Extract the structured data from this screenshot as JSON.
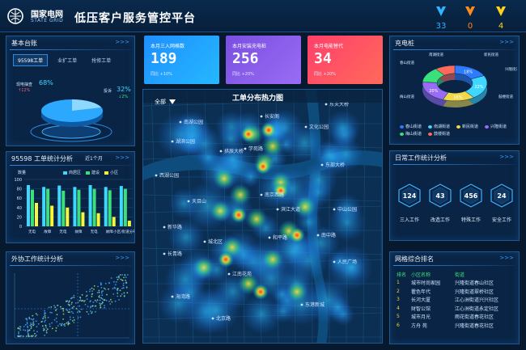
{
  "header": {
    "brand_cn": "国家电网",
    "brand_en": "STATE GRID",
    "title": "低压客户服务管控平台",
    "medals": [
      {
        "count": "33",
        "color": "#2fb4ff"
      },
      {
        "count": "0",
        "color": "#ff8a1c"
      },
      {
        "count": "4",
        "color": "#ffd21c"
      }
    ]
  },
  "ledger": {
    "title": "基本台账",
    "tabs": [
      "95598工单",
      "业扩工单",
      "抢修工单"
    ],
    "left_label": "现电抽查",
    "left_pct": "68%",
    "left_sub": "↑12%",
    "right_label": "投诉",
    "right_pct": "32%",
    "right_sub": "↓2%"
  },
  "kpis": [
    {
      "label": "本月三入网格数",
      "value": "189",
      "sub": "同比 +10%",
      "c1": "#1e8fff",
      "c2": "#25b8ff"
    },
    {
      "label": "本月安装充电桩",
      "value": "256",
      "sub": "同比 +20%",
      "c1": "#7a4fe0",
      "c2": "#9a6cf5"
    },
    {
      "label": "本月电能替代",
      "value": "34",
      "sub": "同比 +20%",
      "c1": "#ff3f6b",
      "c2": "#ff6a5b"
    }
  ],
  "order_stats": {
    "title": "95598 工单统计分析",
    "period": "近1个月",
    "ylabel": "数量",
    "chart_data": {
      "type": "bar",
      "ylim": [
        0,
        100
      ],
      "yticks": [
        "100",
        "80",
        "60",
        "40",
        "20",
        "0"
      ],
      "categories": [
        "无电",
        "故障",
        "无电",
        "故障",
        "无电",
        "故障",
        "小区/街道分布"
      ],
      "series": [
        {
          "name": "商居区",
          "color": "#3fd7ff",
          "values": [
            88,
            84,
            87,
            84,
            88,
            84,
            86
          ]
        },
        {
          "name": "建设",
          "color": "#3be07a",
          "values": [
            78,
            80,
            76,
            78,
            80,
            77,
            80
          ]
        },
        {
          "name": "小区",
          "color": "#f6f63b",
          "values": [
            50,
            44,
            40,
            30,
            28,
            20,
            12
          ]
        }
      ]
    }
  },
  "outsource": {
    "title": "外协工作统计分析"
  },
  "map": {
    "title": "工单分布热力图",
    "filter": "全部",
    "labels": [
      "东夫大桥",
      "南湖公园",
      "长安阁",
      "文化公园",
      "拱辰大桥",
      "湖滨公园",
      "学苑路",
      "东部大桥",
      "西湖公园",
      "南京西路",
      "天目山",
      "中山公园",
      "新华路",
      "滨江大道",
      "长青路",
      "南中路",
      "和平路",
      "城北区",
      "江南花苑",
      "人民广场",
      "海湾路",
      "东港新城",
      "北京路"
    ]
  },
  "charging": {
    "title": "充电桩",
    "chart_data": {
      "type": "pie",
      "slices": [
        {
          "name": "春山街道",
          "value": 18,
          "color": "#2f7bff"
        },
        {
          "name": "南湖街道",
          "value": 22,
          "color": "#3fd7ff"
        },
        {
          "name": "新民街道",
          "value": 16,
          "color": "#f1d94a"
        },
        {
          "name": "兴隆街道",
          "value": 20,
          "color": "#9a6cf5"
        },
        {
          "name": "梅山街道",
          "value": 14,
          "color": "#3be07a"
        },
        {
          "name": "鼓楼街道",
          "value": 10,
          "color": "#ff6a5b"
        }
      ],
      "pct_labels": [
        "18%",
        "22%",
        "16%",
        "20%"
      ]
    }
  },
  "daily": {
    "title": "日常工作统计分析",
    "items": [
      {
        "value": "124",
        "label": "三入工作"
      },
      {
        "value": "43",
        "label": "改造工作"
      },
      {
        "value": "456",
        "label": "特殊工作"
      },
      {
        "value": "24",
        "label": "安全工作"
      }
    ]
  },
  "ranking": {
    "title": "网格综合排名",
    "headers": [
      "排名",
      "小区名称",
      "街道"
    ],
    "rows": [
      [
        "1",
        "城市时尚家园",
        "兴隆街道春山社区"
      ],
      [
        "2",
        "瞿色年代",
        "兴隆街道翠桥社区"
      ],
      [
        "3",
        "长河大厦",
        "江心洲街道兴兴社区"
      ],
      [
        "4",
        "财智公馆",
        "江心洲街道永定社区"
      ],
      [
        "5",
        "城市月光",
        "雨花街道春花社区"
      ],
      [
        "6",
        "方舟 苑",
        "兴隆街道春花社区"
      ]
    ]
  }
}
